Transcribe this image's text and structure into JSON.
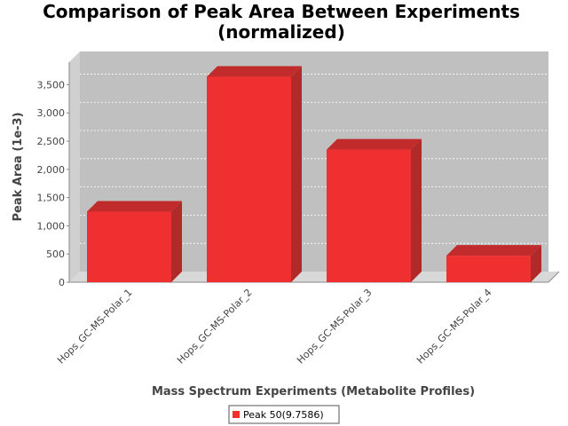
{
  "chart_data": {
    "type": "bar",
    "title_line1": "Comparison of Peak Area Between Experiments",
    "title_line2": "(normalized)",
    "xlabel": "Mass Spectrum Experiments (Metabolite Profiles)",
    "ylabel": "Peak Area (1e-3)",
    "categories": [
      "Hops_GC-MS-Polar_1",
      "Hops_GC-MS-Polar_2",
      "Hops_GC-MS-Polar_3",
      "Hops_GC-MS-Polar_4"
    ],
    "series": [
      {
        "name": "Peak 50(9.7586)",
        "values": [
          1250,
          3640,
          2350,
          470
        ]
      }
    ],
    "ylim": [
      0,
      3900
    ],
    "yticks": [
      0,
      500,
      1000,
      1500,
      2000,
      2500,
      3000,
      3500
    ],
    "ytick_labels": [
      "0",
      "500",
      "1,000",
      "1,500",
      "2,000",
      "2,500",
      "3,000",
      "3,500"
    ],
    "grid": true,
    "legend_position": "bottom-center",
    "colors": {
      "bar_front": "#f03030",
      "bar_side": "#b02a2a",
      "bar_top": "#c22b2b",
      "plot_back": "#c0c0c0",
      "plot_floor": "#d8d8d8",
      "plot_left_wall": "#d0d0d0",
      "grid": "#ffffff"
    }
  }
}
